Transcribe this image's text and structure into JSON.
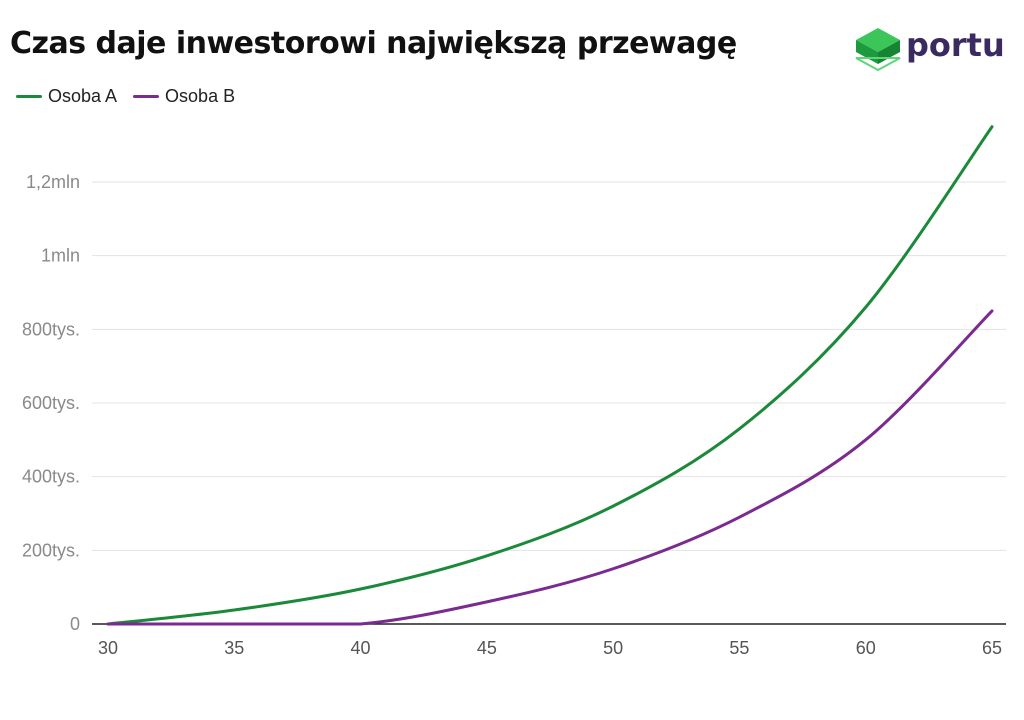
{
  "header": {
    "title": "Czas daje inwestorowi największą przewagę"
  },
  "logo": {
    "text": "portu",
    "icon": "stacked-cube-icon",
    "color": "#1ea04a"
  },
  "legend": [
    {
      "label": "Osoba A",
      "color": "#1a8a3a"
    },
    {
      "label": "Osoba B",
      "color": "#7b2a8f"
    }
  ],
  "chart_data": {
    "type": "line",
    "title": "Czas daje inwestorowi największą przewagę",
    "xlabel": "",
    "ylabel": "",
    "x_ticks": [
      "30",
      "35",
      "40",
      "45",
      "50",
      "55",
      "60",
      "65"
    ],
    "y_ticks": [
      {
        "value": 0,
        "label": "0"
      },
      {
        "value": 200000,
        "label": "200tys."
      },
      {
        "value": 400000,
        "label": "400tys."
      },
      {
        "value": 600000,
        "label": "600tys."
      },
      {
        "value": 800000,
        "label": "800tys."
      },
      {
        "value": 1000000,
        "label": "1mln"
      },
      {
        "value": 1200000,
        "label": "1,2mln"
      }
    ],
    "xlim": [
      30,
      65
    ],
    "ylim": [
      0,
      1350000
    ],
    "grid": "horizontal",
    "legend_position": "top-left",
    "x": [
      30,
      35,
      40,
      45,
      50,
      55,
      60,
      65
    ],
    "series": [
      {
        "name": "Osoba A",
        "color": "#1a8a3a",
        "values": [
          0,
          38000,
          95000,
          185000,
          320000,
          530000,
          860000,
          1350000
        ]
      },
      {
        "name": "Osoba B",
        "color": "#7b2a8f",
        "values": [
          0,
          0,
          0,
          60000,
          150000,
          290000,
          500000,
          850000
        ]
      }
    ]
  }
}
